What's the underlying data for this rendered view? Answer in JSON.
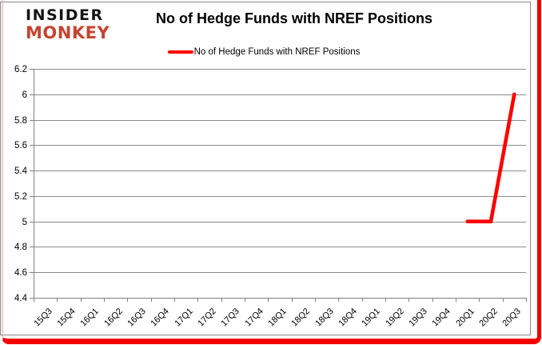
{
  "logo": {
    "line1": "INSIDER",
    "line2": "MONKEY"
  },
  "header": {
    "title": "No of Hedge Funds with NREF Positions"
  },
  "legend": {
    "label": "No of Hedge Funds with NREF Positions"
  },
  "chart_data": {
    "type": "line",
    "title": "No of Hedge Funds with NREF Positions",
    "xlabel": "",
    "ylabel": "",
    "categories": [
      "15Q3",
      "15Q4",
      "16Q1",
      "16Q2",
      "16Q3",
      "16Q4",
      "17Q1",
      "17Q2",
      "17Q3",
      "17Q4",
      "18Q1",
      "18Q2",
      "18Q3",
      "18Q4",
      "19Q1",
      "19Q2",
      "19Q3",
      "19Q4",
      "20Q1",
      "20Q2",
      "20Q3"
    ],
    "series": [
      {
        "name": "No of Hedge Funds with NREF Positions",
        "color": "#ff0000",
        "values": [
          null,
          null,
          null,
          null,
          null,
          null,
          null,
          null,
          null,
          null,
          null,
          null,
          null,
          null,
          null,
          null,
          null,
          null,
          5,
          5,
          6
        ]
      }
    ],
    "ylim": [
      4.4,
      6.2
    ],
    "yticks": [
      {
        "value": 6.2,
        "label": "6.2"
      },
      {
        "value": 6.0,
        "label": "6"
      },
      {
        "value": 5.8,
        "label": "5.8"
      },
      {
        "value": 5.6,
        "label": "5.6"
      },
      {
        "value": 5.4,
        "label": "5.4"
      },
      {
        "value": 5.2,
        "label": "5.2"
      },
      {
        "value": 5.0,
        "label": "5"
      },
      {
        "value": 4.8,
        "label": "4.8"
      },
      {
        "value": 4.6,
        "label": "4.6"
      },
      {
        "value": 4.4,
        "label": "4.4"
      }
    ],
    "grid": true,
    "legend_position": "top"
  },
  "colors": {
    "series_line": "#ff0000",
    "gridline": "#8c8c8c",
    "axis": "#808080",
    "text": "#000000",
    "logo_insider": "#141414",
    "logo_monkey": "#c8432e",
    "highlight_border": "#f40000",
    "frame_border": "#8a8a8a"
  }
}
